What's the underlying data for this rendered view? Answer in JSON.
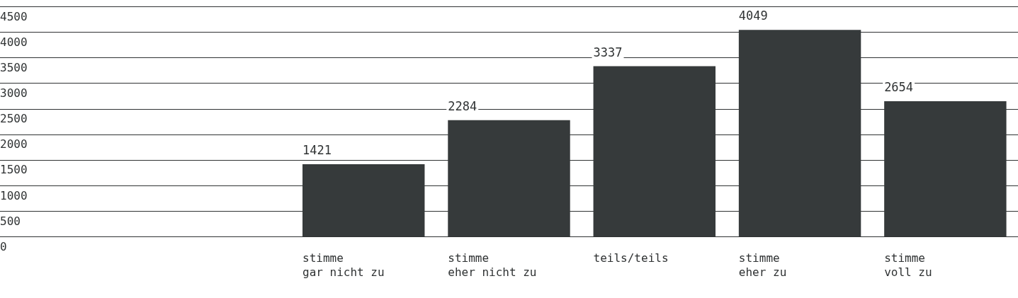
{
  "chart_data": {
    "type": "bar",
    "categories": [
      null,
      null,
      "stimme gar nicht zu",
      "stimme eher nicht zu",
      "teils/teils",
      "stimme eher zu",
      "stimme voll zu"
    ],
    "values": [
      null,
      null,
      1421,
      2284,
      3337,
      4049,
      2654
    ],
    "color": "#363a3b",
    "ylim": [
      0,
      4500
    ],
    "yticks": [
      0,
      500,
      1000,
      1500,
      2000,
      2500,
      3000,
      3500,
      4000,
      4500
    ],
    "grid": "y",
    "data_labels": true,
    "legend": false
  }
}
